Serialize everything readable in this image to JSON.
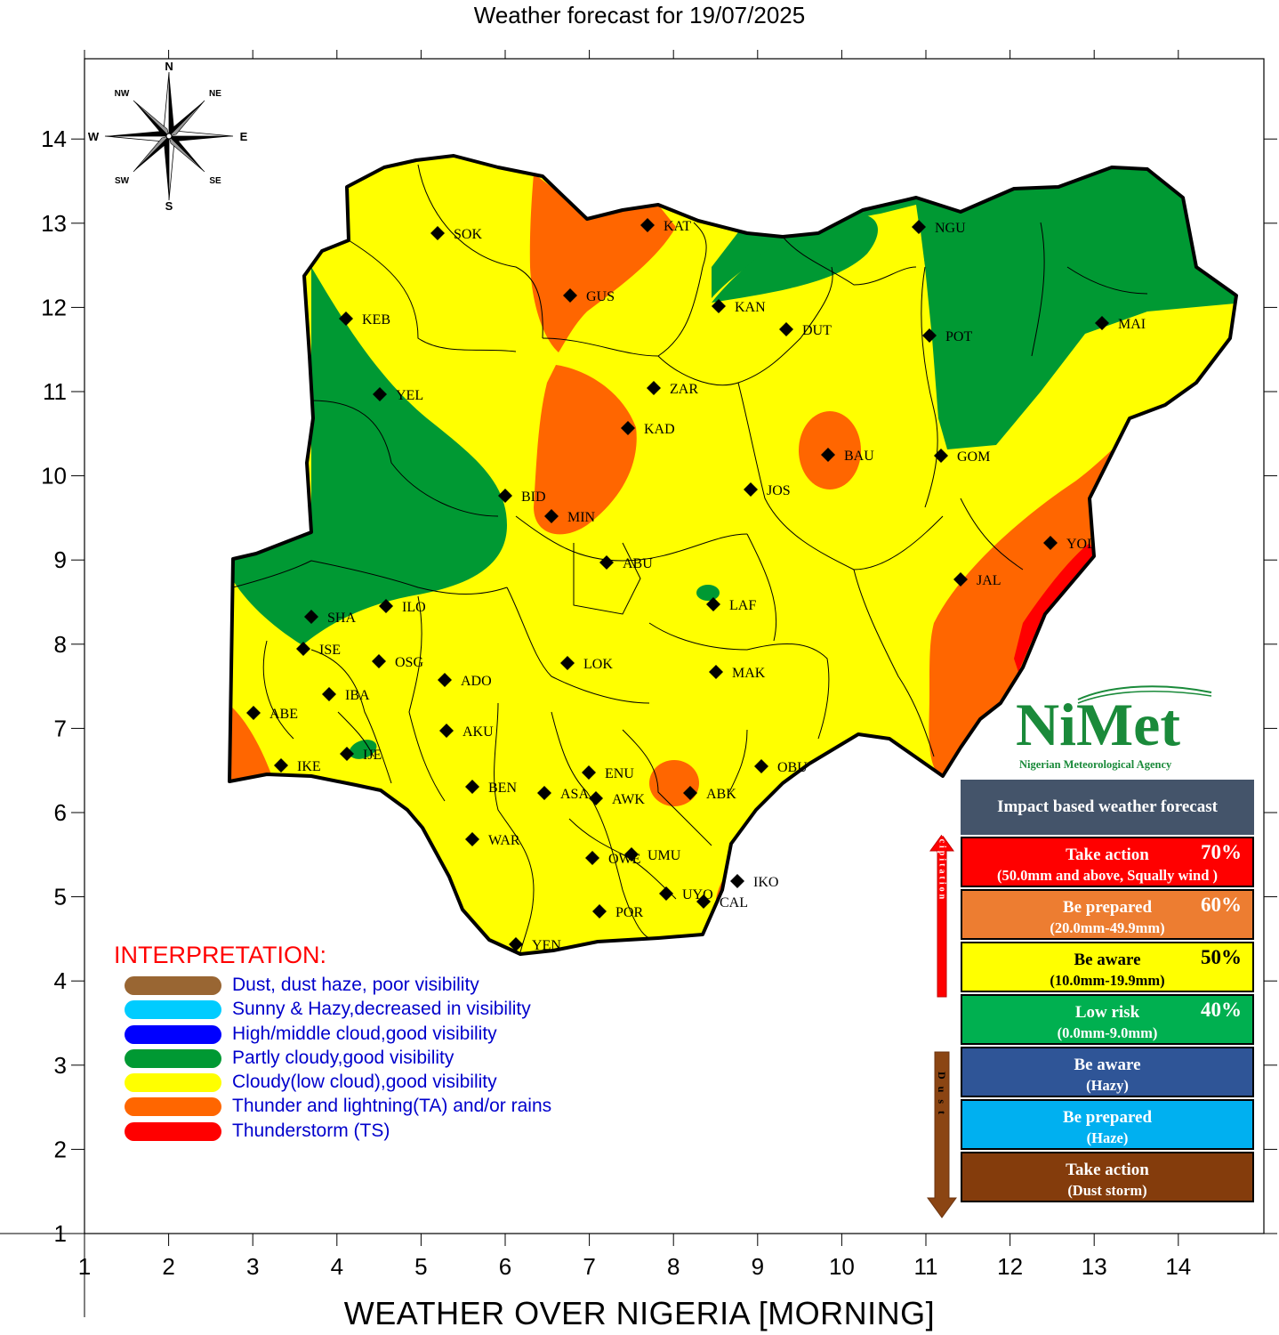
{
  "map": {
    "title": "Weather forecast for 19/07/2025",
    "x_axis_title": "WEATHER OVER NIGERIA [MORNING]",
    "x_ticks": [
      "1",
      "2",
      "3",
      "4",
      "5",
      "6",
      "7",
      "8",
      "9",
      "10",
      "11",
      "12",
      "13",
      "14"
    ],
    "y_ticks": [
      "1",
      "2",
      "3",
      "4",
      "5",
      "6",
      "7",
      "8",
      "9",
      "10",
      "11",
      "12",
      "13",
      "14"
    ]
  },
  "compass": {
    "n": "N",
    "ne": "NE",
    "e": "E",
    "se": "SE",
    "s": "S",
    "sw": "SW",
    "w": "W",
    "nw": "NW"
  },
  "cities": [
    {
      "code": "SOK"
    },
    {
      "code": "KAT"
    },
    {
      "code": "GUS"
    },
    {
      "code": "KAN"
    },
    {
      "code": "NGU"
    },
    {
      "code": "KEB"
    },
    {
      "code": "DUT"
    },
    {
      "code": "POT"
    },
    {
      "code": "MAI"
    },
    {
      "code": "YEL"
    },
    {
      "code": "ZAR"
    },
    {
      "code": "KAD"
    },
    {
      "code": "BAU"
    },
    {
      "code": "GOM"
    },
    {
      "code": "BID"
    },
    {
      "code": "JOS"
    },
    {
      "code": "MIN"
    },
    {
      "code": "YOL"
    },
    {
      "code": "ABU"
    },
    {
      "code": "JAL"
    },
    {
      "code": "SHA"
    },
    {
      "code": "ILO"
    },
    {
      "code": "LAF"
    },
    {
      "code": "ISE"
    },
    {
      "code": "OSG"
    },
    {
      "code": "LOK"
    },
    {
      "code": "MAK"
    },
    {
      "code": "IBA"
    },
    {
      "code": "ADO"
    },
    {
      "code": "ABE"
    },
    {
      "code": "AKU"
    },
    {
      "code": "IKE"
    },
    {
      "code": "IJE"
    },
    {
      "code": "ENU"
    },
    {
      "code": "OBU"
    },
    {
      "code": "BEN"
    },
    {
      "code": "ASA"
    },
    {
      "code": "AWK"
    },
    {
      "code": "ABK"
    },
    {
      "code": "WAR"
    },
    {
      "code": "UMU"
    },
    {
      "code": "OWE"
    },
    {
      "code": "IKO"
    },
    {
      "code": "UYO"
    },
    {
      "code": "CAL"
    },
    {
      "code": "POR"
    },
    {
      "code": "YEN"
    }
  ],
  "interpretation": {
    "title": "INTERPRETATION:",
    "items": [
      {
        "color": "#996633",
        "text": "Dust, dust haze, poor visibility"
      },
      {
        "color": "#00ccff",
        "text": "Sunny & Hazy,decreased in visibility"
      },
      {
        "color": "#0000ff",
        "text": "High/middle cloud,good visibility"
      },
      {
        "color": "#009933",
        "text": "Partly cloudy,good visibility"
      },
      {
        "color": "#ffff00",
        "text": "Cloudy(low cloud),good visibility"
      },
      {
        "color": "#ff6600",
        "text": "Thunder and lightning(TA) and/or rains"
      },
      {
        "color": "#ff0000",
        "text": "Thunderstorm (TS)"
      }
    ]
  },
  "logo": {
    "name": "NiMet",
    "subtitle": "Nigerian Meteorological Agency"
  },
  "impact": {
    "title": "Impact based weather forecast",
    "precip_arrow_label": "Precipitation",
    "dust_arrow_label": "Dust",
    "levels": [
      {
        "label": "Take action",
        "detail": "(50.0mm and above, Squally wind )",
        "pct": "70%",
        "bg": "#ff0000",
        "fg": "#ffffff",
        "pct_fg": "#ffffff"
      },
      {
        "label": "Be prepared",
        "detail": "(20.0mm-49.9mm)",
        "pct": "60%",
        "bg": "#ed7d31",
        "fg": "#ffffff",
        "pct_fg": "#ffffff"
      },
      {
        "label": "Be aware",
        "detail": "(10.0mm-19.9mm)",
        "pct": "50%",
        "bg": "#ffff00",
        "fg": "#000000",
        "pct_fg": "#000000"
      },
      {
        "label": "Low risk",
        "detail": "(0.0mm-9.0mm)",
        "pct": "40%",
        "bg": "#00b050",
        "fg": "#ffffff",
        "pct_fg": "#ffffff"
      },
      {
        "label": "Be aware",
        "detail": "(Hazy)",
        "pct": "",
        "bg": "#2f5597",
        "fg": "#ffffff",
        "pct_fg": "#ffffff"
      },
      {
        "label": "Be prepared",
        "detail": "(Haze)",
        "pct": "",
        "bg": "#00b0f0",
        "fg": "#ffffff",
        "pct_fg": "#ffffff"
      },
      {
        "label": "Take action",
        "detail": "(Dust storm)",
        "pct": "",
        "bg": "#843c0c",
        "fg": "#ffffff",
        "pct_fg": "#ffffff"
      }
    ]
  }
}
